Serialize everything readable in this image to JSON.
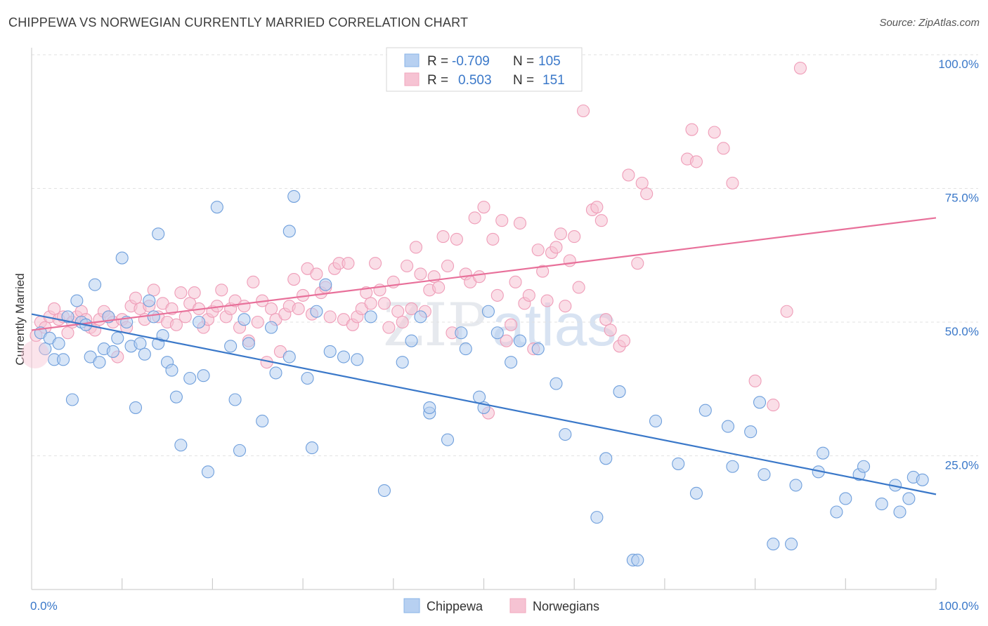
{
  "header": {
    "title": "CHIPPEWA VS NORWEGIAN CURRENTLY MARRIED CORRELATION CHART",
    "source": "Source: ZipAtlas.com"
  },
  "watermark": {
    "zip": "ZIP",
    "atlas": "atlas"
  },
  "legend_top": {
    "rows": [
      {
        "r_label": "R =",
        "r_value": "-0.709",
        "n_label": "N =",
        "n_value": "105",
        "color": "#8ab4e8"
      },
      {
        "r_label": "R =",
        "r_value": "0.503",
        "n_label": "N =",
        "n_value": "151",
        "color": "#f1a7be"
      }
    ]
  },
  "legend_bottom": {
    "items": [
      "Chippewa",
      "Norwegians"
    ]
  },
  "chart_data": {
    "type": "scatter",
    "title": "CHIPPEWA VS NORWEGIAN CURRENTLY MARRIED CORRELATION CHART",
    "xlabel": "",
    "ylabel": "Currently Married",
    "xlim": [
      0,
      100
    ],
    "ylim": [
      0,
      100
    ],
    "x_tick_labels": [
      "0.0%",
      "100.0%"
    ],
    "y_tick_labels": [
      "100.0%",
      "75.0%",
      "50.0%",
      "25.0%"
    ],
    "y_ticks": [
      100,
      75,
      50,
      25
    ],
    "grid": true,
    "legend_position": "top-center",
    "colors": {
      "chippewa": "#3a78c9",
      "chippewa_fill": "#b7d0f1",
      "norwegians": "#e8709a",
      "norwegians_fill": "#f6c3d3"
    },
    "series": [
      {
        "name": "Chippewa",
        "trend": {
          "x": [
            0,
            100
          ],
          "y": [
            51.5,
            17.8
          ]
        },
        "points": [
          [
            1,
            48
          ],
          [
            1.5,
            45
          ],
          [
            2,
            47
          ],
          [
            2.5,
            43
          ],
          [
            3,
            46
          ],
          [
            3.5,
            43
          ],
          [
            4,
            51
          ],
          [
            4.5,
            35.5
          ],
          [
            5,
            54
          ],
          [
            5.5,
            50
          ],
          [
            6,
            49.5
          ],
          [
            6.5,
            43.5
          ],
          [
            7,
            57
          ],
          [
            7.5,
            42.5
          ],
          [
            8,
            45
          ],
          [
            8.5,
            51
          ],
          [
            9,
            44.5
          ],
          [
            9.5,
            47
          ],
          [
            10,
            62
          ],
          [
            10.5,
            50
          ],
          [
            11,
            45.5
          ],
          [
            11.5,
            34
          ],
          [
            12,
            46
          ],
          [
            12.5,
            44
          ],
          [
            13,
            54
          ],
          [
            13.5,
            51
          ],
          [
            14,
            46
          ],
          [
            14,
            66.5
          ],
          [
            14.5,
            47.5
          ],
          [
            15,
            42.5
          ],
          [
            15.5,
            41
          ],
          [
            16,
            36
          ],
          [
            16.5,
            27
          ],
          [
            17.5,
            39.5
          ],
          [
            18.5,
            50
          ],
          [
            19,
            40
          ],
          [
            19.5,
            22
          ],
          [
            20.5,
            71.5
          ],
          [
            22,
            45.5
          ],
          [
            22.5,
            35.5
          ],
          [
            23,
            26
          ],
          [
            23.5,
            50.5
          ],
          [
            24,
            46
          ],
          [
            25.5,
            31.5
          ],
          [
            26.5,
            49
          ],
          [
            27,
            40.5
          ],
          [
            28.5,
            43.5
          ],
          [
            28.5,
            67
          ],
          [
            29,
            73.5
          ],
          [
            30.5,
            39.5
          ],
          [
            31,
            26.5
          ],
          [
            31.5,
            52
          ],
          [
            32.5,
            57
          ],
          [
            33,
            44.5
          ],
          [
            34.5,
            43.5
          ],
          [
            36,
            43
          ],
          [
            37.5,
            51
          ],
          [
            39,
            18.5
          ],
          [
            41,
            42.5
          ],
          [
            42,
            46.5
          ],
          [
            43,
            51
          ],
          [
            44,
            33
          ],
          [
            44,
            34
          ],
          [
            46,
            28
          ],
          [
            47.5,
            48
          ],
          [
            48,
            45
          ],
          [
            49.5,
            36
          ],
          [
            50,
            34
          ],
          [
            50.5,
            52
          ],
          [
            51.5,
            48
          ],
          [
            53,
            42.5
          ],
          [
            54,
            46.5
          ],
          [
            56,
            45
          ],
          [
            58,
            38.5
          ],
          [
            59,
            29
          ],
          [
            62.5,
            13.5
          ],
          [
            63.5,
            24.5
          ],
          [
            65,
            37
          ],
          [
            66.5,
            5.5
          ],
          [
            67,
            5.5
          ],
          [
            69,
            31.5
          ],
          [
            71.5,
            23.5
          ],
          [
            73.5,
            18
          ],
          [
            74.5,
            33.5
          ],
          [
            77,
            30.5
          ],
          [
            77.5,
            23
          ],
          [
            79.5,
            29.5
          ],
          [
            80.5,
            35
          ],
          [
            81,
            21.5
          ],
          [
            82,
            8.5
          ],
          [
            84,
            8.5
          ],
          [
            84.5,
            19.5
          ],
          [
            87,
            22
          ],
          [
            87.5,
            25.5
          ],
          [
            89,
            14.5
          ],
          [
            90,
            17
          ],
          [
            91.5,
            21.5
          ],
          [
            92,
            23
          ],
          [
            94,
            16
          ],
          [
            95.5,
            19.5
          ],
          [
            96,
            14.5
          ],
          [
            97,
            17
          ],
          [
            97.5,
            21
          ],
          [
            98.5,
            20.5
          ]
        ]
      },
      {
        "name": "Norwegians",
        "trend": {
          "x": [
            0,
            100
          ],
          "y": [
            48.5,
            69.5
          ]
        },
        "points": [
          [
            0.5,
            47.5
          ],
          [
            1,
            50
          ],
          [
            1.5,
            49
          ],
          [
            2,
            51
          ],
          [
            2.5,
            52.5
          ],
          [
            3,
            50.5
          ],
          [
            3.5,
            51
          ],
          [
            4,
            48
          ],
          [
            4.5,
            50
          ],
          [
            5,
            51
          ],
          [
            5.5,
            52
          ],
          [
            6,
            50.5
          ],
          [
            6.5,
            49
          ],
          [
            7,
            48.5
          ],
          [
            7.5,
            50.5
          ],
          [
            8,
            52
          ],
          [
            8.5,
            51
          ],
          [
            9,
            50
          ],
          [
            9.5,
            43.5
          ],
          [
            10,
            50.5
          ],
          [
            10.5,
            49
          ],
          [
            11,
            53
          ],
          [
            11.5,
            54.5
          ],
          [
            12,
            52.5
          ],
          [
            12.5,
            50.5
          ],
          [
            13,
            53
          ],
          [
            13.5,
            56
          ],
          [
            14,
            51
          ],
          [
            14.5,
            53.5
          ],
          [
            15,
            50
          ],
          [
            15.5,
            52.5
          ],
          [
            16,
            49.5
          ],
          [
            16.5,
            55.5
          ],
          [
            17,
            51
          ],
          [
            17.5,
            53.5
          ],
          [
            18,
            55.5
          ],
          [
            18.5,
            52.5
          ],
          [
            19,
            49
          ],
          [
            19.5,
            50.5
          ],
          [
            20,
            52
          ],
          [
            20.5,
            53
          ],
          [
            21,
            56
          ],
          [
            21.5,
            51
          ],
          [
            22,
            52.5
          ],
          [
            22.5,
            54
          ],
          [
            23,
            49
          ],
          [
            23.5,
            53
          ],
          [
            24,
            46.5
          ],
          [
            24.5,
            57.5
          ],
          [
            25,
            50
          ],
          [
            25.5,
            54
          ],
          [
            26,
            42.5
          ],
          [
            26.5,
            52.5
          ],
          [
            27,
            50.5
          ],
          [
            27.5,
            44.5
          ],
          [
            28,
            51.5
          ],
          [
            28.5,
            53
          ],
          [
            29,
            58
          ],
          [
            29.5,
            52.5
          ],
          [
            30,
            55
          ],
          [
            30.5,
            60
          ],
          [
            31,
            51.5
          ],
          [
            31.5,
            59
          ],
          [
            32,
            55.5
          ],
          [
            32.5,
            56.5
          ],
          [
            33,
            51
          ],
          [
            33.5,
            60
          ],
          [
            34,
            61
          ],
          [
            34.5,
            50.5
          ],
          [
            35,
            61
          ],
          [
            35.5,
            49.5
          ],
          [
            36,
            51
          ],
          [
            36.5,
            52.5
          ],
          [
            37,
            55.5
          ],
          [
            37.5,
            53.5
          ],
          [
            38,
            61
          ],
          [
            38.5,
            56
          ],
          [
            39,
            53.5
          ],
          [
            39.5,
            49
          ],
          [
            40,
            57.5
          ],
          [
            40.5,
            52
          ],
          [
            41,
            50
          ],
          [
            41.5,
            60.5
          ],
          [
            42,
            52.5
          ],
          [
            42.5,
            64
          ],
          [
            43,
            59
          ],
          [
            43.5,
            52
          ],
          [
            44,
            56
          ],
          [
            44.5,
            58.5
          ],
          [
            45,
            56.5
          ],
          [
            45.5,
            66
          ],
          [
            46,
            60.5
          ],
          [
            46.5,
            48
          ],
          [
            47,
            65.5
          ],
          [
            48,
            59
          ],
          [
            48.5,
            57.5
          ],
          [
            49,
            69.5
          ],
          [
            49.5,
            58.5
          ],
          [
            50,
            71.5
          ],
          [
            50.5,
            33
          ],
          [
            51,
            65.5
          ],
          [
            51.5,
            55
          ],
          [
            52,
            69
          ],
          [
            52.5,
            46.5
          ],
          [
            53,
            49.5
          ],
          [
            53.5,
            57.5
          ],
          [
            54,
            68.5
          ],
          [
            54.5,
            53.5
          ],
          [
            55,
            55
          ],
          [
            55.5,
            45
          ],
          [
            56,
            63.5
          ],
          [
            56.5,
            59.5
          ],
          [
            57,
            54
          ],
          [
            57.5,
            63
          ],
          [
            58,
            64
          ],
          [
            58.5,
            66.5
          ],
          [
            59,
            53
          ],
          [
            59.5,
            61.5
          ],
          [
            60,
            66
          ],
          [
            60.5,
            56.5
          ],
          [
            61,
            89.5
          ],
          [
            62,
            71
          ],
          [
            62.5,
            71.5
          ],
          [
            63,
            69
          ],
          [
            63.5,
            50.5
          ],
          [
            64,
            48.5
          ],
          [
            65,
            45.5
          ],
          [
            65.5,
            46.5
          ],
          [
            66,
            77.5
          ],
          [
            67,
            61
          ],
          [
            67.5,
            76
          ],
          [
            68,
            74
          ],
          [
            72.5,
            80.5
          ],
          [
            73,
            86
          ],
          [
            73.5,
            80
          ],
          [
            75.5,
            85.5
          ],
          [
            76.5,
            82.5
          ],
          [
            77.5,
            76
          ],
          [
            80,
            39
          ],
          [
            82,
            34.5
          ],
          [
            83.5,
            52
          ],
          [
            85,
            97.5
          ]
        ]
      }
    ]
  }
}
